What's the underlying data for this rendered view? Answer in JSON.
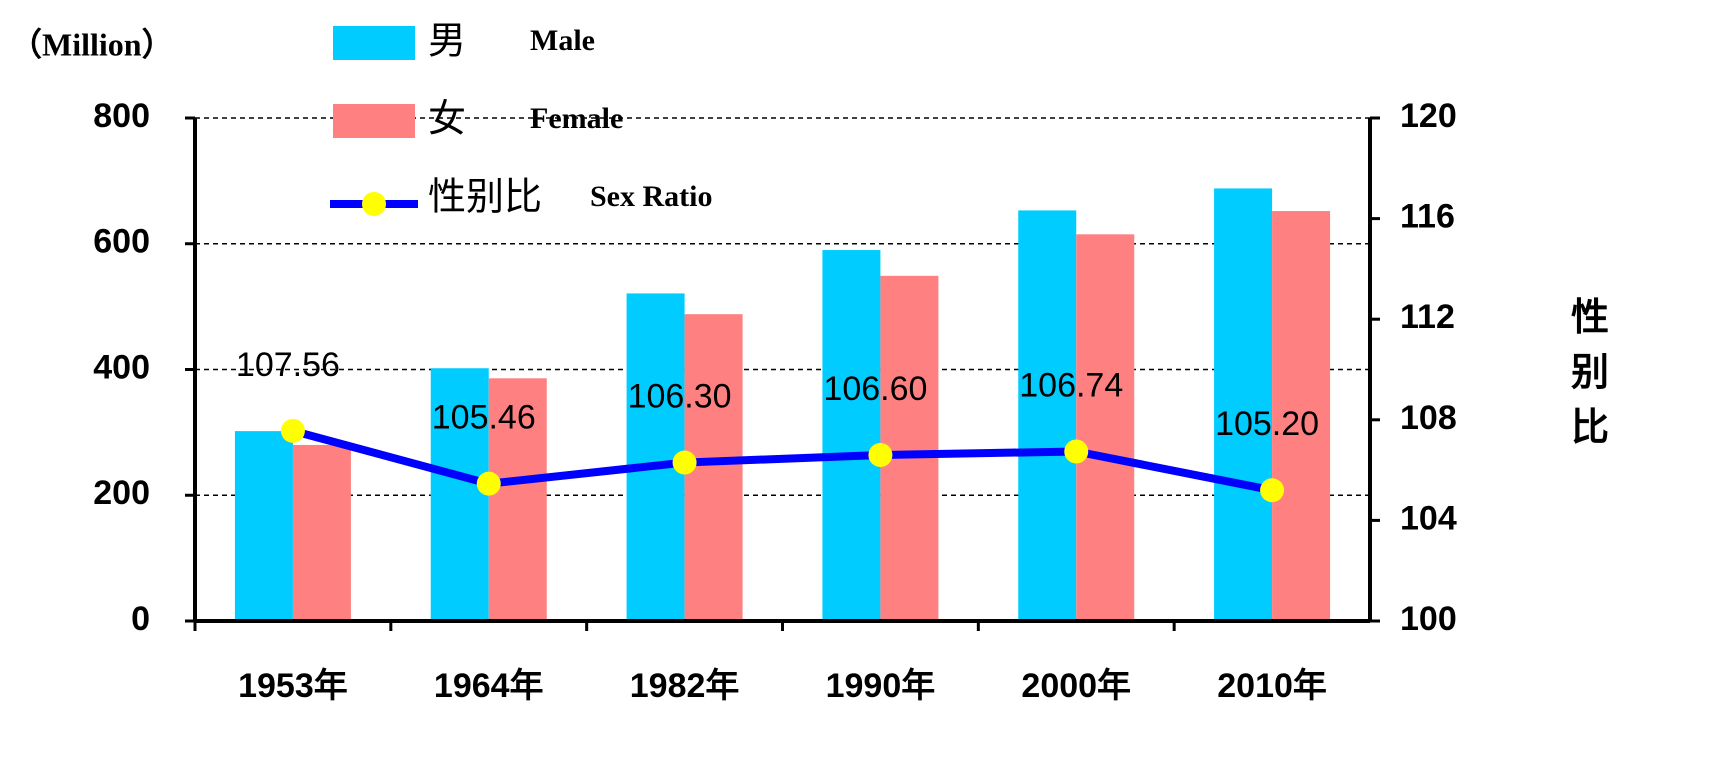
{
  "chart_data": {
    "type": "bar_line",
    "y_label": "（Million）",
    "y2_label": "性别比",
    "categories": [
      "1953年",
      "1964年",
      "1982年",
      "1990年",
      "2000年",
      "2010年"
    ],
    "series": [
      {
        "name": "男",
        "name_en": "Male",
        "color": "#00ccff",
        "type": "bar",
        "values": [
          302,
          402,
          521,
          590,
          653,
          688
        ]
      },
      {
        "name": "女",
        "name_en": "Female",
        "color": "#ff8080",
        "type": "bar",
        "values": [
          280,
          386,
          488,
          549,
          615,
          652
        ]
      },
      {
        "name": "性别比",
        "name_en": "Sex Ratio",
        "color": "#0000ff",
        "marker_color": "#ffff00",
        "type": "line",
        "axis": "y2",
        "values": [
          107.56,
          105.46,
          106.3,
          106.6,
          106.74,
          105.2
        ],
        "value_labels": [
          "107.56",
          "105.46",
          "106.30",
          "106.60",
          "106.74",
          "105.20"
        ]
      }
    ],
    "ylim": [
      0,
      800
    ],
    "yticks": [
      0,
      200,
      400,
      600,
      800
    ],
    "y2lim": [
      100,
      120
    ],
    "y2ticks": [
      100,
      104,
      108,
      112,
      116,
      120
    ],
    "grid": true,
    "legend": "top-left"
  }
}
